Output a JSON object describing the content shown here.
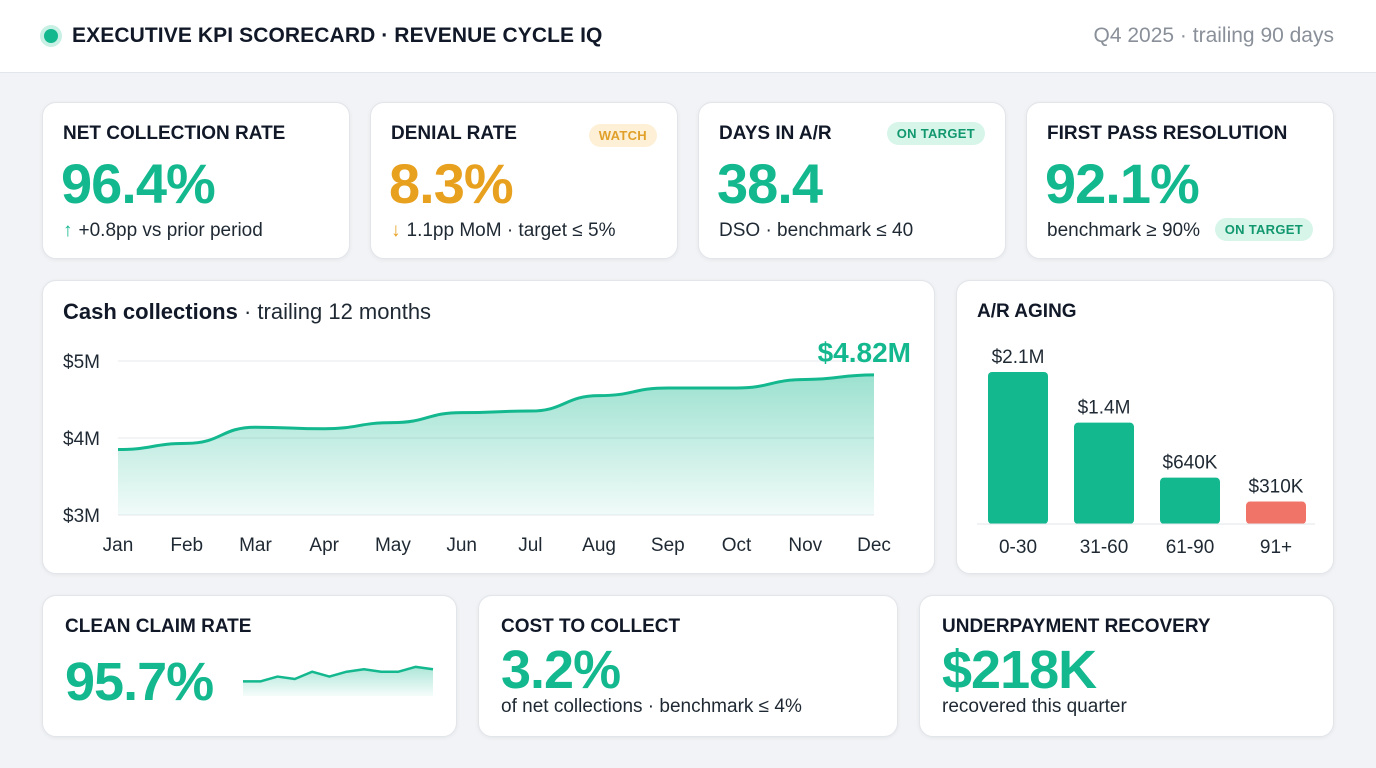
{
  "header": {
    "title": "EXECUTIVE KPI SCORECARD · REVENUE CYCLE IQ",
    "period": "Q4 2025 · trailing 90 days"
  },
  "kpis": [
    {
      "label": "NET COLLECTION RATE",
      "value": "96.4%",
      "arrow": "↑",
      "sub": "+0.8pp vs prior period",
      "color": "#14b88f"
    },
    {
      "label": "DENIAL RATE",
      "value": "8.3%",
      "arrow": "↓",
      "sub": "1.1pp MoM · target ≤ 5%",
      "badge": "WATCH",
      "color": "#e8a01f"
    },
    {
      "label": "DAYS IN A/R",
      "value": "38.4",
      "sub": "DSO · benchmark ≤ 40",
      "badge": "ON TARGET",
      "color": "#14b88f"
    },
    {
      "label": "FIRST PASS RESOLUTION",
      "value": "92.1%",
      "sub": "benchmark ≥ 90%",
      "badge": "ON TARGET",
      "color": "#14b88f"
    }
  ],
  "cash_chart": {
    "title_bold": "Cash collections",
    "title_rest": "· trailing 12 months",
    "latest_label": "$4.82M"
  },
  "aging": {
    "title": "A/R AGING"
  },
  "bottom": [
    {
      "label": "CLEAN CLAIM RATE",
      "value": "95.7%"
    },
    {
      "label": "COST TO COLLECT",
      "value": "3.2%",
      "sub": "of net collections · benchmark ≤ 4%"
    },
    {
      "label": "UNDERPAYMENT RECOVERY",
      "value": "$218K",
      "sub": "recovered this quarter"
    }
  ],
  "colors": {
    "accent": "#14b88f",
    "warning": "#e8a01f",
    "danger": "#f07468"
  },
  "chart_data": [
    {
      "type": "area",
      "x": [
        "Jan",
        "Feb",
        "Mar",
        "Apr",
        "May",
        "Jun",
        "Jul",
        "Aug",
        "Sep",
        "Oct",
        "Nov",
        "Dec"
      ],
      "series": [
        {
          "values": [
            3.85,
            3.93,
            4.14,
            4.12,
            4.2,
            4.33,
            4.35,
            4.55,
            4.65,
            4.65,
            4.76,
            4.82
          ]
        }
      ],
      "yticks": [
        "$3M",
        "$4M",
        "$5M"
      ],
      "ylim": [
        3,
        5
      ],
      "annotation": "$4.82M",
      "grid": true
    },
    {
      "type": "bar",
      "categories": [
        "0-30",
        "31-60",
        "61-90",
        "91+"
      ],
      "values": [
        2.1,
        1.4,
        0.64,
        0.31
      ],
      "value_labels": [
        "$2.1M",
        "$1.4M",
        "$640K",
        "$310K"
      ],
      "colors": [
        "#14b88f",
        "#14b88f",
        "#14b88f",
        "#f07468"
      ]
    },
    {
      "type": "line",
      "values": [
        95.2,
        95.2,
        95.4,
        95.3,
        95.6,
        95.4,
        95.6,
        95.7,
        95.6,
        95.6,
        95.8,
        95.7
      ]
    }
  ]
}
